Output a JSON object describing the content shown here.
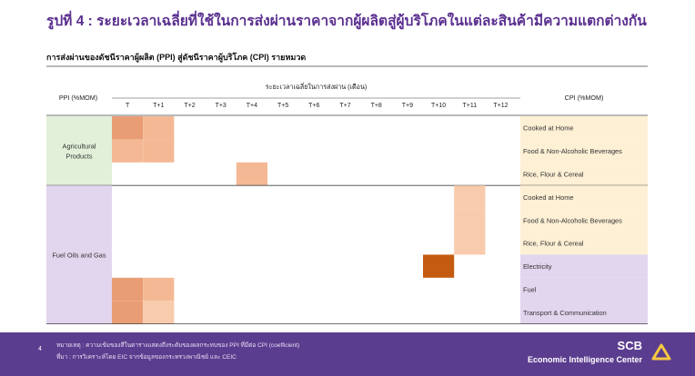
{
  "page": {
    "title": "รูปที่ 4 : ระยะเวลาเฉลี่ยที่ใช้ในการส่งผ่านราคาจากผู้ผลิตสู่ผู้บริโภคในแต่ละสินค้ามีความแตกต่างกัน",
    "subtitle": "การส่งผ่านของดัชนีราคาผู้ผลิต (PPI) สู่ดัชนีราคาผู้บริโภค (CPI) รายหมวด"
  },
  "footer": {
    "page_number": "4",
    "note": "หมายเหตุ : ความเข้มของสีในตารางแสดงถึงระดับของผลกระทบของ PPI ที่มีต่อ CPI (coefficient)",
    "source": "ที่มา : การวิเคราะห์โดย EIC จากข้อมูลของกระทรวงพาณิชย์ และ CEIC",
    "logo_text": "SCB",
    "logo_subtext": "Economic Intelligence Center"
  },
  "chart_data": {
    "type": "heatmap",
    "row_header": "PPI (%MOM)",
    "column_group_header": "ระยะเวลาเฉลี่ยในการส่งผ่าน (เดือน)",
    "cpi_header": "CPI (%MOM)",
    "columns": [
      "T",
      "T+1",
      "T+2",
      "T+3",
      "T+4",
      "T+5",
      "T+6",
      "T+7",
      "T+8",
      "T+9",
      "T+10",
      "T+11",
      "T+12"
    ],
    "groups": [
      {
        "ppi": "Agricultural Products",
        "ppi_lines": [
          "Agricultural",
          "Products"
        ],
        "ppi_color": "#e2f0d9",
        "cpi_color": "#fdf0d5",
        "rows": [
          {
            "cpi": "Cooked at Home",
            "cells": [
              {
                "col": "T",
                "level": 3
              },
              {
                "col": "T+1",
                "level": 2
              }
            ]
          },
          {
            "cpi": "Food & Non-Alcoholic Beverages",
            "cells": [
              {
                "col": "T",
                "level": 2
              },
              {
                "col": "T+1",
                "level": 2
              }
            ]
          },
          {
            "cpi": "Rice, Flour & Cereal",
            "cells": [
              {
                "col": "T+4",
                "level": 2
              }
            ]
          }
        ]
      },
      {
        "ppi": "Fuel Oils and Gas",
        "ppi_lines": [
          "Fuel Oils and Gas"
        ],
        "ppi_color": "#e2d5ee",
        "cpi_colors": [
          "#fdf0d5",
          "#fdf0d5",
          "#fdf0d5",
          "#e2d5ee",
          "#e2d5ee",
          "#e2d5ee"
        ],
        "rows": [
          {
            "cpi": "Cooked at Home",
            "cells": [
              {
                "col": "T+11",
                "level": 1
              }
            ]
          },
          {
            "cpi": "Food & Non-Alcoholic Beverages",
            "cells": [
              {
                "col": "T+11",
                "level": 1
              }
            ]
          },
          {
            "cpi": "Rice, Flour & Cereal",
            "cells": [
              {
                "col": "T+11",
                "level": 1
              }
            ]
          },
          {
            "cpi": "Electricity",
            "cells": [
              {
                "col": "T+10",
                "level": 5
              }
            ]
          },
          {
            "cpi": "Fuel",
            "cells": [
              {
                "col": "T",
                "level": 3
              },
              {
                "col": "T+1",
                "level": 2
              }
            ]
          },
          {
            "cpi": "Transport & Communication",
            "cells": [
              {
                "col": "T",
                "level": 3
              },
              {
                "col": "T+1",
                "level": 1
              }
            ]
          }
        ]
      }
    ],
    "level_colors": {
      "1": "#f8cbad",
      "2": "#f4b994",
      "3": "#e99d74",
      "5": "#c55a11"
    }
  }
}
